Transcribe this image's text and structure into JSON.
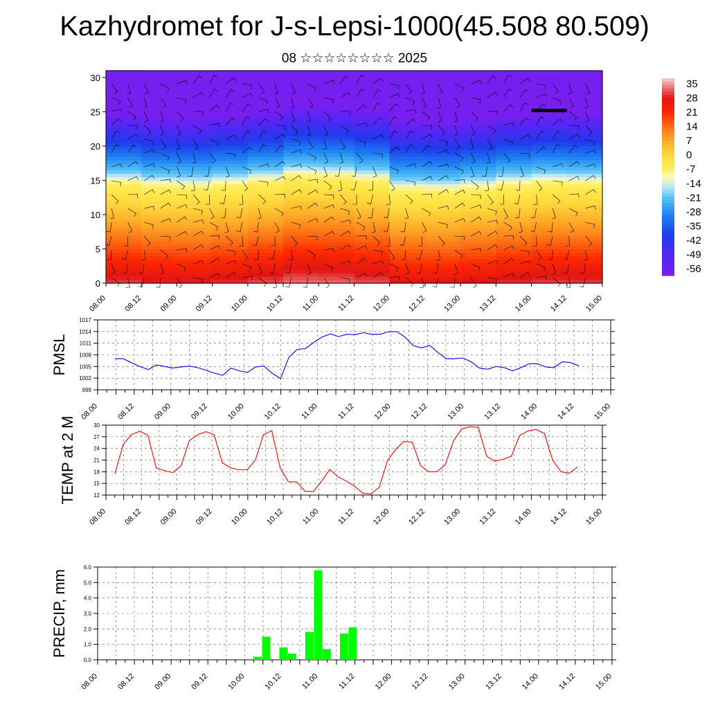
{
  "header": {
    "title": "Kazhydromet for J-s-Lepsi-1000(45.508 80.509)",
    "subtitle": "08 ☆☆☆☆☆☆☆☆ 2025"
  },
  "time_ticks": [
    "08.00",
    "08.12",
    "09.00",
    "09.12",
    "10.00",
    "10.12",
    "11.00",
    "11.12",
    "12.00",
    "12.12",
    "13.00",
    "13.12",
    "14.00",
    "14.12",
    "15.00"
  ],
  "chart_data": [
    {
      "type": "heatmap",
      "name_hint": "temperature-cross-section",
      "x_ticks": [
        "08.00",
        "08.12",
        "09.00",
        "09.12",
        "10.00",
        "10.12",
        "11.00",
        "11.12",
        "12.00",
        "12.12",
        "13.00",
        "13.12",
        "14.00",
        "14.12",
        "15.00"
      ],
      "yticks": [
        "0",
        "5",
        "10",
        "15",
        "20",
        "25",
        "30"
      ],
      "ylim": [
        0,
        31
      ],
      "colorbar_labels": [
        "35",
        "28",
        "21",
        "14",
        "7",
        "0",
        "-7",
        "-14",
        "-21",
        "-28",
        "-35",
        "-42",
        "-49",
        "-56"
      ],
      "colorbar_range": [
        -60,
        38
      ],
      "colors": {
        "warm": "#ff2a00",
        "neutral": "#ffee44",
        "cold": "#3a6bff",
        "coldest": "#7a1ef0"
      },
      "wind_barbs": true
    },
    {
      "type": "line",
      "ylabel": "PMSL",
      "yticks": [
        "999",
        "1002",
        "1005",
        "1008",
        "1011",
        "1014",
        "1017"
      ],
      "ylim": [
        999,
        1017
      ],
      "color": "#0000ee",
      "x": [
        0,
        3,
        6,
        9,
        12,
        15,
        18,
        21,
        24,
        27,
        30,
        33,
        36,
        39,
        42,
        45,
        48,
        51,
        54,
        57,
        60,
        63,
        66,
        69,
        72,
        75,
        78,
        81,
        84,
        87,
        90,
        93,
        96,
        99,
        102,
        105,
        108,
        111,
        114,
        117,
        120,
        123,
        126,
        129,
        132,
        135,
        138,
        141,
        144,
        147,
        150,
        153,
        156,
        159,
        162,
        165,
        168
      ],
      "y": [
        1007,
        1007,
        1006,
        1005,
        1004.2,
        1005.4,
        1005,
        1004.6,
        1004.9,
        1005.1,
        1004.7,
        1004,
        1003.3,
        1002.7,
        1004.6,
        1003.9,
        1003.5,
        1004.9,
        1005.1,
        1003.2,
        1001.9,
        1007.4,
        1009.4,
        1009.6,
        1011.2,
        1012.6,
        1013.4,
        1012.7,
        1013.3,
        1013.2,
        1013.7,
        1013.3,
        1013.3,
        1013.9,
        1014,
        1012.6,
        1010.4,
        1009.8,
        1010.4,
        1008.6,
        1007,
        1007,
        1007.2,
        1006.2,
        1004.6,
        1004.3,
        1005,
        1004.7,
        1003.9,
        1004.7,
        1005.7,
        1005.7,
        1004.9,
        1004.7,
        1006.2,
        1006,
        1005.2
      ]
    },
    {
      "type": "line",
      "ylabel": "TEMP at 2 M",
      "yticks": [
        "12",
        "15",
        "18",
        "21",
        "24",
        "27",
        "30"
      ],
      "ylim": [
        12,
        30
      ],
      "color": "#ee0000",
      "x": [
        0,
        3,
        6,
        9,
        12,
        15,
        18,
        21,
        24,
        27,
        30,
        33,
        36,
        39,
        42,
        45,
        48,
        51,
        54,
        57,
        60,
        63,
        66,
        69,
        72,
        75,
        78,
        81,
        84,
        87,
        90,
        93,
        96,
        99,
        102,
        105,
        108,
        111,
        114,
        117,
        120,
        123,
        126,
        129,
        132,
        135,
        138,
        141,
        144,
        147,
        150,
        153,
        156,
        159,
        162,
        165,
        168
      ],
      "y": [
        17.5,
        25,
        27.6,
        28.4,
        27.4,
        19,
        18.3,
        17.8,
        19.5,
        26,
        27.5,
        28.3,
        27.6,
        20.3,
        19,
        18.5,
        18.5,
        21,
        27.6,
        28.6,
        19,
        15.4,
        15.4,
        13,
        12.9,
        15.5,
        18.6,
        16.7,
        15.6,
        14.3,
        12.5,
        12.3,
        14,
        20.8,
        23.8,
        25.8,
        25.6,
        19.6,
        18,
        18,
        19.8,
        26,
        29,
        29.6,
        29.4,
        22,
        20.7,
        21.2,
        22,
        27.3,
        28.5,
        28.9,
        27.8,
        21,
        18,
        17.6,
        19.2
      ]
    },
    {
      "type": "bar",
      "ylabel": "PRECIP, mm",
      "yticks": [
        "0.0",
        "1.0",
        "2.0",
        "3.0",
        "4.0",
        "5.0",
        "6.0"
      ],
      "ylim": [
        0,
        6
      ],
      "color": "#00ff00",
      "x": [
        51,
        54,
        60,
        63,
        69,
        72,
        75,
        81,
        84
      ],
      "values": [
        0.2,
        1.5,
        0.8,
        0.4,
        1.8,
        5.8,
        0.7,
        1.7,
        2.1
      ]
    }
  ]
}
